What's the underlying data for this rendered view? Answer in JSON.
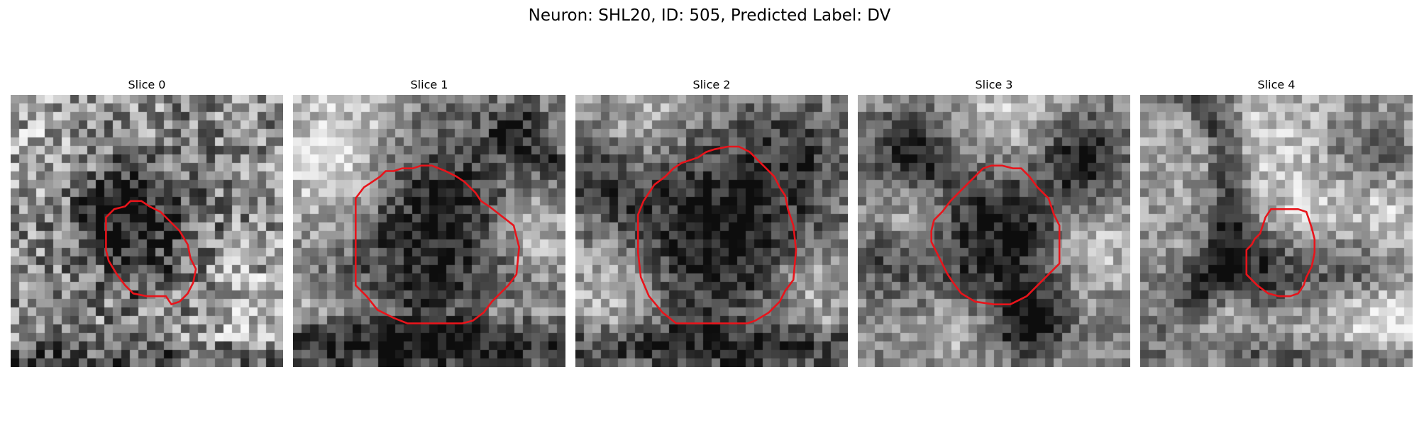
{
  "figure": {
    "title": "Neuron: SHL20, ID: 505, Predicted Label: DV"
  },
  "colors": {
    "contour": "#e8141b"
  },
  "panels": [
    {
      "title": "Slice 0",
      "seed": 11,
      "dark_blobs": [
        [
          0.47,
          0.5,
          0.16,
          0.7
        ],
        [
          0.4,
          0.38,
          0.1,
          0.4
        ]
      ],
      "bright_blobs": [
        [
          0.1,
          0.2,
          0.12,
          0.25
        ],
        [
          0.85,
          0.78,
          0.14,
          0.3
        ]
      ],
      "bands": [
        [
          0.97,
          0.05,
          0.45
        ]
      ],
      "noise": 0.33,
      "base": 0.55,
      "contour": [
        [
          0.35,
          0.45
        ],
        [
          0.38,
          0.42
        ],
        [
          0.42,
          0.41
        ],
        [
          0.44,
          0.39
        ],
        [
          0.48,
          0.39
        ],
        [
          0.51,
          0.41
        ],
        [
          0.55,
          0.43
        ],
        [
          0.59,
          0.47
        ],
        [
          0.62,
          0.5
        ],
        [
          0.65,
          0.55
        ],
        [
          0.66,
          0.6
        ],
        [
          0.68,
          0.64
        ],
        [
          0.67,
          0.69
        ],
        [
          0.65,
          0.73
        ],
        [
          0.62,
          0.76
        ],
        [
          0.59,
          0.77
        ],
        [
          0.57,
          0.74
        ],
        [
          0.55,
          0.74
        ],
        [
          0.5,
          0.74
        ],
        [
          0.45,
          0.73
        ],
        [
          0.42,
          0.7
        ],
        [
          0.39,
          0.66
        ],
        [
          0.36,
          0.61
        ],
        [
          0.35,
          0.57
        ],
        [
          0.35,
          0.49
        ]
      ]
    },
    {
      "title": "Slice 1",
      "seed": 23,
      "dark_blobs": [
        [
          0.52,
          0.48,
          0.28,
          0.9
        ],
        [
          0.45,
          0.8,
          0.1,
          0.2
        ]
      ],
      "bright_blobs": [
        [
          0.18,
          0.35,
          0.14,
          0.45
        ],
        [
          0.85,
          0.5,
          0.12,
          0.5
        ],
        [
          0.2,
          0.15,
          0.16,
          0.4
        ]
      ],
      "bands": [
        [
          0.93,
          0.07,
          0.75
        ],
        [
          0.78,
          0.04,
          -0.15
        ]
      ],
      "extra_dark": [
        [
          0.95,
          0.27,
          0.04,
          0.7
        ],
        [
          0.83,
          0.13,
          0.08,
          0.6
        ]
      ],
      "noise": 0.22,
      "base": 0.62,
      "contour": [
        [
          0.23,
          0.38
        ],
        [
          0.26,
          0.34
        ],
        [
          0.29,
          0.32
        ],
        [
          0.32,
          0.3
        ],
        [
          0.34,
          0.28
        ],
        [
          0.37,
          0.28
        ],
        [
          0.4,
          0.27
        ],
        [
          0.44,
          0.27
        ],
        [
          0.47,
          0.26
        ],
        [
          0.51,
          0.26
        ],
        [
          0.56,
          0.28
        ],
        [
          0.6,
          0.3
        ],
        [
          0.63,
          0.32
        ],
        [
          0.67,
          0.36
        ],
        [
          0.69,
          0.39
        ],
        [
          0.72,
          0.41
        ],
        [
          0.81,
          0.48
        ],
        [
          0.83,
          0.56
        ],
        [
          0.82,
          0.66
        ],
        [
          0.79,
          0.7
        ],
        [
          0.73,
          0.76
        ],
        [
          0.7,
          0.8
        ],
        [
          0.66,
          0.83
        ],
        [
          0.62,
          0.84
        ],
        [
          0.52,
          0.84
        ],
        [
          0.42,
          0.84
        ],
        [
          0.37,
          0.82
        ],
        [
          0.31,
          0.79
        ],
        [
          0.27,
          0.74
        ],
        [
          0.23,
          0.7
        ],
        [
          0.23,
          0.52
        ]
      ]
    },
    {
      "title": "Slice 2",
      "seed": 37,
      "dark_blobs": [
        [
          0.52,
          0.5,
          0.29,
          0.9
        ],
        [
          0.05,
          0.3,
          0.1,
          0.5
        ],
        [
          0.85,
          0.2,
          0.1,
          0.4
        ]
      ],
      "bright_blobs": [
        [
          0.15,
          0.7,
          0.12,
          0.55
        ],
        [
          0.85,
          0.7,
          0.12,
          0.45
        ],
        [
          0.3,
          0.12,
          0.14,
          0.35
        ]
      ],
      "bands": [
        [
          0.93,
          0.06,
          0.55
        ]
      ],
      "noise": 0.22,
      "base": 0.58,
      "contour": [
        [
          0.23,
          0.44
        ],
        [
          0.25,
          0.39
        ],
        [
          0.27,
          0.36
        ],
        [
          0.29,
          0.33
        ],
        [
          0.33,
          0.3
        ],
        [
          0.36,
          0.27
        ],
        [
          0.39,
          0.25
        ],
        [
          0.42,
          0.24
        ],
        [
          0.45,
          0.23
        ],
        [
          0.48,
          0.21
        ],
        [
          0.51,
          0.2
        ],
        [
          0.56,
          0.19
        ],
        [
          0.6,
          0.19
        ],
        [
          0.64,
          0.21
        ],
        [
          0.67,
          0.24
        ],
        [
          0.7,
          0.27
        ],
        [
          0.73,
          0.3
        ],
        [
          0.75,
          0.34
        ],
        [
          0.77,
          0.37
        ],
        [
          0.78,
          0.42
        ],
        [
          0.8,
          0.48
        ],
        [
          0.81,
          0.57
        ],
        [
          0.8,
          0.68
        ],
        [
          0.77,
          0.72
        ],
        [
          0.75,
          0.76
        ],
        [
          0.71,
          0.8
        ],
        [
          0.66,
          0.83
        ],
        [
          0.63,
          0.84
        ],
        [
          0.56,
          0.84
        ],
        [
          0.48,
          0.84
        ],
        [
          0.37,
          0.84
        ],
        [
          0.32,
          0.8
        ],
        [
          0.27,
          0.74
        ],
        [
          0.24,
          0.67
        ],
        [
          0.23,
          0.58
        ]
      ]
    },
    {
      "title": "Slice 3",
      "seed": 51,
      "dark_blobs": [
        [
          0.52,
          0.52,
          0.22,
          0.8
        ],
        [
          0.2,
          0.2,
          0.1,
          0.7
        ],
        [
          0.82,
          0.22,
          0.1,
          0.75
        ],
        [
          0.63,
          0.85,
          0.08,
          0.7
        ],
        [
          0.1,
          0.6,
          0.1,
          0.35
        ]
      ],
      "bright_blobs": [
        [
          0.2,
          0.45,
          0.1,
          0.45
        ],
        [
          0.85,
          0.55,
          0.12,
          0.55
        ],
        [
          0.55,
          0.1,
          0.16,
          0.45
        ],
        [
          0.35,
          0.85,
          0.1,
          0.4
        ]
      ],
      "bands": [],
      "noise": 0.2,
      "base": 0.55,
      "contour": [
        [
          0.27,
          0.5
        ],
        [
          0.28,
          0.46
        ],
        [
          0.31,
          0.43
        ],
        [
          0.34,
          0.39
        ],
        [
          0.37,
          0.36
        ],
        [
          0.4,
          0.33
        ],
        [
          0.43,
          0.3
        ],
        [
          0.46,
          0.27
        ],
        [
          0.49,
          0.26
        ],
        [
          0.53,
          0.26
        ],
        [
          0.57,
          0.27
        ],
        [
          0.6,
          0.27
        ],
        [
          0.63,
          0.3
        ],
        [
          0.66,
          0.34
        ],
        [
          0.7,
          0.38
        ],
        [
          0.72,
          0.44
        ],
        [
          0.74,
          0.48
        ],
        [
          0.74,
          0.56
        ],
        [
          0.74,
          0.62
        ],
        [
          0.7,
          0.66
        ],
        [
          0.66,
          0.7
        ],
        [
          0.62,
          0.74
        ],
        [
          0.56,
          0.77
        ],
        [
          0.5,
          0.77
        ],
        [
          0.43,
          0.76
        ],
        [
          0.38,
          0.73
        ],
        [
          0.35,
          0.69
        ],
        [
          0.33,
          0.66
        ],
        [
          0.31,
          0.62
        ],
        [
          0.29,
          0.58
        ],
        [
          0.27,
          0.54
        ]
      ]
    },
    {
      "title": "Slice 4",
      "seed": 67,
      "dark_blobs": [
        [
          0.5,
          0.75,
          0.18,
          0.55
        ],
        [
          0.85,
          0.2,
          0.1,
          0.45
        ],
        [
          0.42,
          0.62,
          0.1,
          0.4
        ],
        [
          0.8,
          0.62,
          0.1,
          0.3
        ]
      ],
      "bright_blobs": [
        [
          0.6,
          0.45,
          0.12,
          0.35
        ],
        [
          0.9,
          0.45,
          0.1,
          0.35
        ],
        [
          0.45,
          0.15,
          0.14,
          0.3
        ]
      ],
      "arc": [
        0.05,
        0.35,
        0.28,
        0.05,
        0.85
      ],
      "bands": [
        [
          0.82,
          0.08,
          -0.55
        ],
        [
          0.95,
          0.05,
          0.15
        ]
      ],
      "noise": 0.2,
      "base": 0.62,
      "contour": [
        [
          0.42,
          0.53
        ],
        [
          0.44,
          0.51
        ],
        [
          0.45,
          0.48
        ],
        [
          0.46,
          0.45
        ],
        [
          0.48,
          0.42
        ],
        [
          0.51,
          0.42
        ],
        [
          0.55,
          0.42
        ],
        [
          0.58,
          0.42
        ],
        [
          0.61,
          0.43
        ],
        [
          0.62,
          0.46
        ],
        [
          0.63,
          0.49
        ],
        [
          0.64,
          0.53
        ],
        [
          0.64,
          0.58
        ],
        [
          0.63,
          0.63
        ],
        [
          0.61,
          0.67
        ],
        [
          0.6,
          0.7
        ],
        [
          0.58,
          0.73
        ],
        [
          0.55,
          0.74
        ],
        [
          0.51,
          0.74
        ],
        [
          0.47,
          0.73
        ],
        [
          0.43,
          0.7
        ],
        [
          0.39,
          0.66
        ],
        [
          0.39,
          0.61
        ],
        [
          0.39,
          0.57
        ],
        [
          0.41,
          0.55
        ]
      ]
    }
  ]
}
